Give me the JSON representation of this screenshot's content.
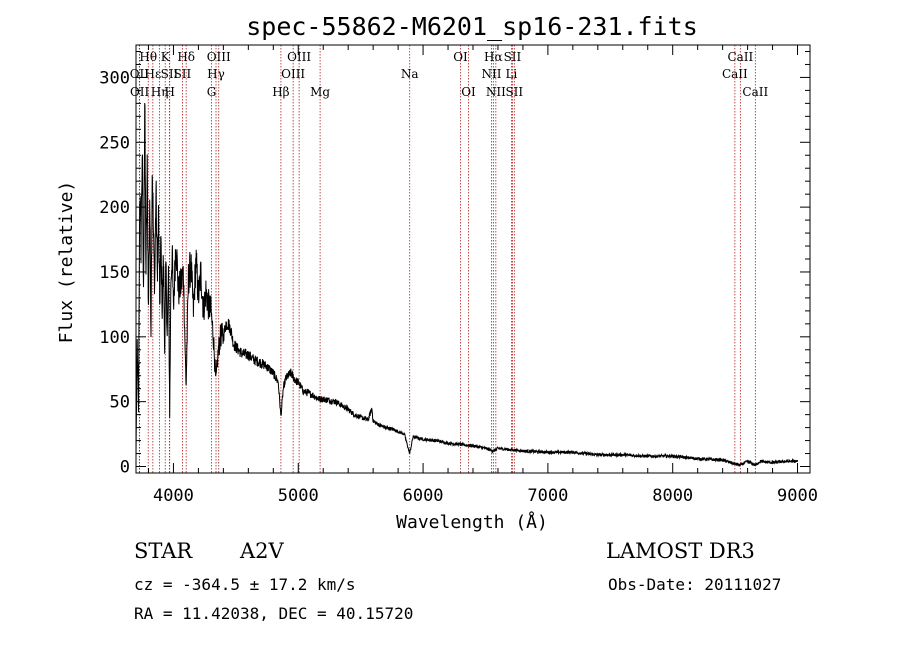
{
  "chart_data": {
    "type": "line",
    "title": "spec-55862-M6201_sp16-231.fits",
    "xlabel": "Wavelength (Å)",
    "ylabel": "Flux (relative)",
    "xlim": [
      3700,
      9100
    ],
    "ylim": [
      -5,
      325
    ],
    "xticks": [
      4000,
      5000,
      6000,
      7000,
      8000,
      9000
    ],
    "yticks": [
      0,
      50,
      100,
      150,
      200,
      250,
      300
    ],
    "line_color": "#000000",
    "marker_color": "#b22222",
    "spectrum_anchors": [
      [
        3700,
        8
      ],
      [
        3710,
        95
      ],
      [
        3720,
        40
      ],
      [
        3730,
        215
      ],
      [
        3740,
        170
      ],
      [
        3750,
        245
      ],
      [
        3760,
        130
      ],
      [
        3770,
        280
      ],
      [
        3780,
        150
      ],
      [
        3790,
        225
      ],
      [
        3800,
        120
      ],
      [
        3810,
        210
      ],
      [
        3820,
        105
      ],
      [
        3830,
        235
      ],
      [
        3840,
        175
      ],
      [
        3850,
        140
      ],
      [
        3860,
        215
      ],
      [
        3870,
        150
      ],
      [
        3880,
        190
      ],
      [
        3890,
        125
      ],
      [
        3900,
        175
      ],
      [
        3910,
        120
      ],
      [
        3920,
        160
      ],
      [
        3930,
        90
      ],
      [
        3940,
        155
      ],
      [
        3950,
        100
      ],
      [
        3960,
        150
      ],
      [
        3970,
        40
      ],
      [
        3980,
        145
      ],
      [
        3990,
        165
      ],
      [
        4000,
        120
      ],
      [
        4020,
        175
      ],
      [
        4040,
        135
      ],
      [
        4060,
        140
      ],
      [
        4080,
        150
      ],
      [
        4101,
        60
      ],
      [
        4120,
        145
      ],
      [
        4140,
        155
      ],
      [
        4160,
        120
      ],
      [
        4180,
        160
      ],
      [
        4200,
        130
      ],
      [
        4220,
        150
      ],
      [
        4240,
        120
      ],
      [
        4260,
        135
      ],
      [
        4280,
        125
      ],
      [
        4300,
        120
      ],
      [
        4320,
        100
      ],
      [
        4340,
        65
      ],
      [
        4360,
        90
      ],
      [
        4380,
        102
      ],
      [
        4400,
        100
      ],
      [
        4420,
        110
      ],
      [
        4440,
        110
      ],
      [
        4460,
        105
      ],
      [
        4480,
        95
      ],
      [
        4500,
        92
      ],
      [
        4550,
        87
      ],
      [
        4600,
        86
      ],
      [
        4650,
        82
      ],
      [
        4700,
        80
      ],
      [
        4750,
        77
      ],
      [
        4800,
        72
      ],
      [
        4840,
        65
      ],
      [
        4861,
        38
      ],
      [
        4880,
        60
      ],
      [
        4900,
        68
      ],
      [
        4940,
        72
      ],
      [
        4980,
        66
      ],
      [
        5000,
        65
      ],
      [
        5040,
        58
      ],
      [
        5100,
        56
      ],
      [
        5167,
        52
      ],
      [
        5200,
        52
      ],
      [
        5250,
        51
      ],
      [
        5300,
        50
      ],
      [
        5350,
        47
      ],
      [
        5400,
        44
      ],
      [
        5450,
        40
      ],
      [
        5500,
        38
      ],
      [
        5560,
        36
      ],
      [
        5590,
        45
      ],
      [
        5600,
        35
      ],
      [
        5650,
        32
      ],
      [
        5700,
        30
      ],
      [
        5750,
        29
      ],
      [
        5800,
        27
      ],
      [
        5850,
        25
      ],
      [
        5893,
        10
      ],
      [
        5920,
        23
      ],
      [
        6000,
        21
      ],
      [
        6100,
        20
      ],
      [
        6200,
        18
      ],
      [
        6300,
        17
      ],
      [
        6400,
        16
      ],
      [
        6500,
        14
      ],
      [
        6563,
        12
      ],
      [
        6600,
        14
      ],
      [
        6700,
        13
      ],
      [
        6800,
        12
      ],
      [
        7000,
        11
      ],
      [
        7200,
        11
      ],
      [
        7400,
        9
      ],
      [
        7600,
        9
      ],
      [
        7800,
        8
      ],
      [
        8000,
        8
      ],
      [
        8200,
        6
      ],
      [
        8400,
        5
      ],
      [
        8498,
        2
      ],
      [
        8542,
        1
      ],
      [
        8600,
        4
      ],
      [
        8662,
        1
      ],
      [
        8700,
        4
      ],
      [
        8800,
        3
      ],
      [
        8900,
        4
      ],
      [
        9000,
        4
      ]
    ],
    "line_markers": [
      {
        "label": "Hθ",
        "wavelength": 3798,
        "row": 0
      },
      {
        "label": "OII",
        "wavelength": 3727,
        "row": 1
      },
      {
        "label": "Hε",
        "wavelength": 3835,
        "row": 1
      },
      {
        "label": "OII",
        "wavelength": 3729,
        "row": 2
      },
      {
        "label": "Hη",
        "wavelength": 3889,
        "row": 2
      },
      {
        "label": "K",
        "wavelength": 3934,
        "row": 0
      },
      {
        "label": "SII",
        "wavelength": 3968,
        "row": 1
      },
      {
        "label": "H",
        "wavelength": 3970,
        "row": 2
      },
      {
        "label": "Hδ",
        "wavelength": 4102,
        "row": 0
      },
      {
        "label": "SII",
        "wavelength": 4072,
        "row": 1
      },
      {
        "label": "OIII",
        "wavelength": 4363,
        "row": 0
      },
      {
        "label": "Hγ",
        "wavelength": 4341,
        "row": 1
      },
      {
        "label": "G",
        "wavelength": 4305,
        "row": 2
      },
      {
        "label": "OIII",
        "wavelength": 5007,
        "row": 0
      },
      {
        "label": "OIII",
        "wavelength": 4959,
        "row": 1
      },
      {
        "label": "Hβ",
        "wavelength": 4861,
        "row": 2
      },
      {
        "label": "Mg",
        "wavelength": 5175,
        "row": 2
      },
      {
        "label": "Na",
        "wavelength": 5893,
        "row": 1
      },
      {
        "label": "OI",
        "wavelength": 6300,
        "row": 0
      },
      {
        "label": "OI",
        "wavelength": 6364,
        "row": 2
      },
      {
        "label": "Hα",
        "wavelength": 6563,
        "row": 0
      },
      {
        "label": "SII",
        "wavelength": 6716,
        "row": 0
      },
      {
        "label": "NII",
        "wavelength": 6548,
        "row": 1
      },
      {
        "label": "Li",
        "wavelength": 6708,
        "row": 1
      },
      {
        "label": "NII",
        "wavelength": 6583,
        "row": 2
      },
      {
        "label": "SII",
        "wavelength": 6731,
        "row": 2
      },
      {
        "label": "CaII",
        "wavelength": 8542,
        "row": 0
      },
      {
        "label": "CaII",
        "wavelength": 8498,
        "row": 1
      },
      {
        "label": "CaII",
        "wavelength": 8662,
        "row": 2
      }
    ]
  },
  "info": {
    "object_class": "STAR",
    "subclass": "A2V",
    "survey": "LAMOST DR3",
    "redshift": "cz = -364.5 ± 17.2 km/s",
    "obs_date": "Obs-Date: 20111027",
    "coords": "RA =  11.42038, DEC =  40.15720"
  }
}
